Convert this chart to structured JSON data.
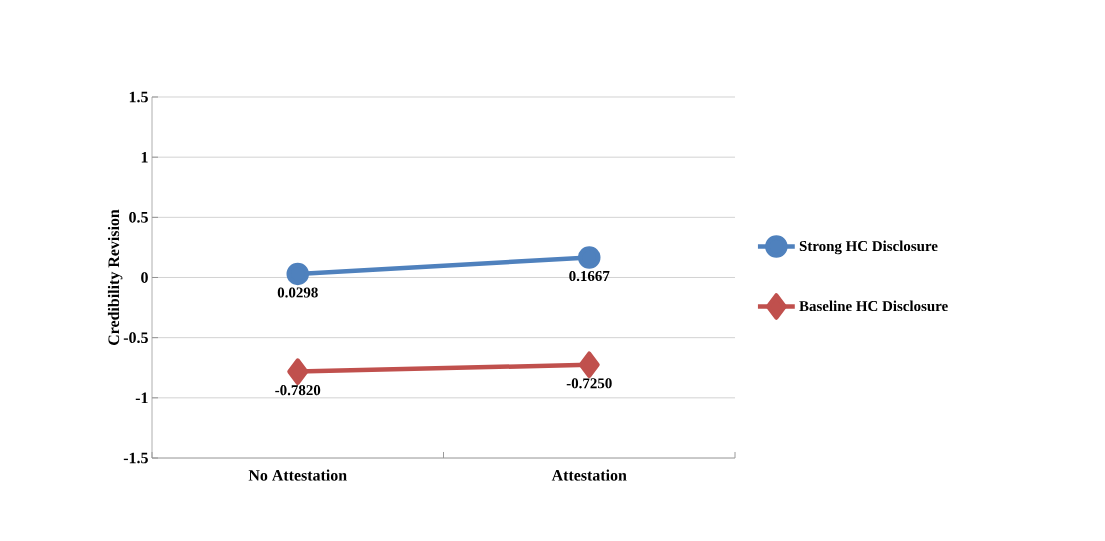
{
  "chart_data": {
    "type": "line",
    "ylabel": "Credibility Revision",
    "categories": [
      "No Attestation",
      "Attestation"
    ],
    "series": [
      {
        "name": "Strong HC Disclosure",
        "color": "#4f81bd",
        "values": [
          0.0298,
          0.1667
        ],
        "value_labels": [
          "0.0298",
          "0.1667"
        ],
        "marker": "circle"
      },
      {
        "name": "Baseline HC Disclosure",
        "color": "#c0504d",
        "values": [
          -0.782,
          -0.725
        ],
        "value_labels": [
          "-0.7820",
          "-0.7250"
        ],
        "marker": "diamond"
      }
    ],
    "ylim": [
      -1.5,
      1.5
    ],
    "yticks": [
      -1.5,
      -1,
      -0.5,
      0,
      0.5,
      1,
      1.5
    ],
    "grid": "y",
    "legend": "right",
    "line_style": "solid"
  }
}
